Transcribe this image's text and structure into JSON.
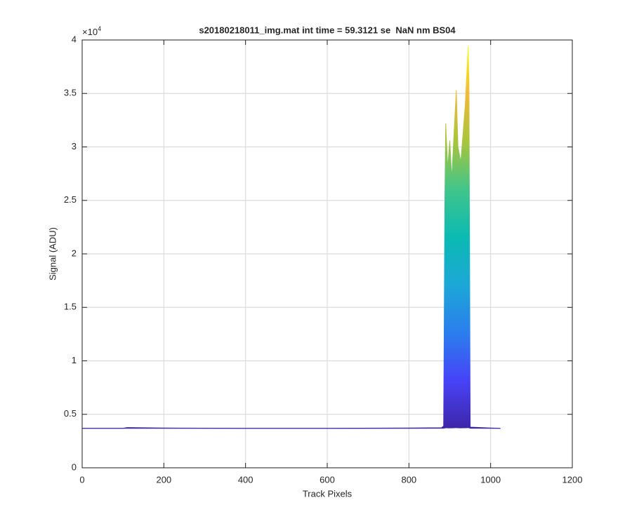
{
  "chart_data": {
    "type": "area",
    "title": "s20180218011_img.mat int time = 59.3121 se  NaN nm BS04",
    "x_label": "Track Pixels",
    "y_label": "Signal (ADU)",
    "y_exponent_label": "×10",
    "y_exponent_power": "4",
    "x": [
      0,
      100,
      110,
      200,
      400,
      600,
      800,
      880,
      885,
      888,
      890,
      895,
      900,
      905,
      910,
      916,
      920,
      927,
      932,
      938,
      945,
      947,
      950,
      1000,
      1024
    ],
    "series": [
      {
        "color": "#f9fb0e",
        "values": [
          3700,
          3700,
          3760,
          3720,
          3700,
          3700,
          3720,
          3750,
          3900,
          25000,
          32200,
          28000,
          30600,
          27000,
          31000,
          35300,
          30000,
          28600,
          31000,
          34000,
          39400,
          36000,
          3800,
          3720,
          3700
        ]
      },
      {
        "color": "#3e26a8",
        "values": [
          3680,
          3680,
          3700,
          3690,
          3680,
          3680,
          3690,
          3700,
          3700,
          3720,
          3740,
          3730,
          3740,
          3730,
          3740,
          3750,
          3740,
          3730,
          3740,
          3740,
          3750,
          3740,
          3700,
          3690,
          3680
        ]
      }
    ],
    "colormap": "parula",
    "xlim": [
      0,
      1200
    ],
    "xticks": [
      0,
      200,
      400,
      600,
      800,
      1000,
      1200
    ],
    "ylim": [
      0,
      40000
    ],
    "yticks": [
      {
        "value": 0,
        "label": "0"
      },
      {
        "value": 5000,
        "label": "0.5"
      },
      {
        "value": 10000,
        "label": "1"
      },
      {
        "value": 15000,
        "label": "1.5"
      },
      {
        "value": 20000,
        "label": "2"
      },
      {
        "value": 25000,
        "label": "2.5"
      },
      {
        "value": 30000,
        "label": "3"
      },
      {
        "value": 35000,
        "label": "3.5"
      },
      {
        "value": 40000,
        "label": "4"
      }
    ],
    "grid": true
  }
}
